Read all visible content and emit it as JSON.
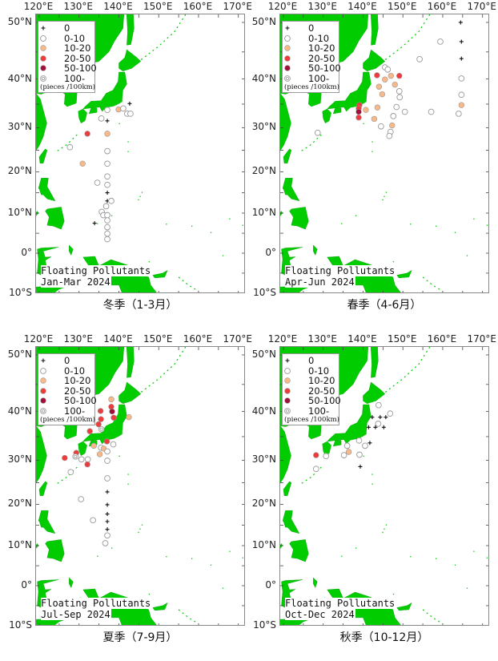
{
  "lon_ticks": [
    "120°E",
    "130°E",
    "140°E",
    "150°E",
    "160°E",
    "170°E"
  ],
  "lat_ticks": [
    "50°N",
    "40°N",
    "30°N",
    "20°N",
    "10°N",
    "0°",
    "10°S"
  ],
  "axis_ranges": {
    "lon": [
      119.2,
      171.8
    ],
    "lat": [
      -10.2,
      51.2
    ],
    "projection": "mercator"
  },
  "colors": {
    "land": "#00cc00",
    "open_stroke": "#999999",
    "10-20": "#f8b888",
    "20-50": "#ee3b3b",
    "50-100": "#a0103a"
  },
  "legend": {
    "items": [
      {
        "symbol": "plus",
        "label": "0"
      },
      {
        "symbol": "open-circle",
        "label": "0-10"
      },
      {
        "symbol": "circle-10-20",
        "label": "10-20"
      },
      {
        "symbol": "circle-20-50",
        "label": "20-50"
      },
      {
        "symbol": "circle-50-100",
        "label": "50-100"
      },
      {
        "symbol": "double-ring",
        "label": "100-"
      }
    ],
    "unit": "(pieces /100km)"
  },
  "panels": [
    {
      "title1": "Floating Pollutants",
      "title2": "Jan-Mar 2024",
      "caption": "冬季（1-3月）",
      "points": [
        [
          142.7,
          35.1,
          "0"
        ],
        [
          137.1,
          33.8,
          "0-10"
        ],
        [
          139.9,
          33.9,
          "10-20"
        ],
        [
          141.1,
          34.1,
          "0-10"
        ],
        [
          142.1,
          33.0,
          "0-10"
        ],
        [
          142.9,
          33.0,
          "0-10"
        ],
        [
          135.6,
          32.0,
          "0-10"
        ],
        [
          137.1,
          31.5,
          "0"
        ],
        [
          132.1,
          28.7,
          "20-50"
        ],
        [
          137.1,
          28.7,
          "10-20"
        ],
        [
          127.7,
          25.7,
          "0-10"
        ],
        [
          137.1,
          24.8,
          "0-10"
        ],
        [
          130.9,
          21.9,
          "10-20"
        ],
        [
          137.1,
          21.9,
          "0-10"
        ],
        [
          137.1,
          18.9,
          "0-10"
        ],
        [
          134.6,
          17.4,
          "0-10"
        ],
        [
          137.1,
          16.9,
          "0-10"
        ],
        [
          137.1,
          15.0,
          "0"
        ],
        [
          137.1,
          13.0,
          "0"
        ],
        [
          138.1,
          13.0,
          "0-10"
        ],
        [
          136.8,
          11.7,
          "0-10"
        ],
        [
          135.7,
          10.3,
          "0-10"
        ],
        [
          136.1,
          9.5,
          "0-10"
        ],
        [
          137.1,
          9.5,
          "0-10"
        ],
        [
          137.1,
          8.2,
          "0-10"
        ],
        [
          133.9,
          7.5,
          "0"
        ],
        [
          137.1,
          6.5,
          "0-10"
        ],
        [
          137.1,
          4.9,
          "0-10"
        ],
        [
          137.1,
          3.5,
          "0-10"
        ]
      ]
    },
    {
      "title1": "Floating Pollutants",
      "title2": "Apr-Jun 2024",
      "caption": "春季（4-6月）",
      "points": [
        [
          164.5,
          50.0,
          "0"
        ],
        [
          159.4,
          46.8,
          "0-10"
        ],
        [
          164.7,
          46.8,
          "0"
        ],
        [
          154.2,
          43.7,
          "0-10"
        ],
        [
          164.7,
          43.8,
          "0"
        ],
        [
          145.5,
          42.2,
          "0-10"
        ],
        [
          146.2,
          41.8,
          "0-10"
        ],
        [
          143.5,
          40.7,
          "20-50"
        ],
        [
          147.0,
          40.6,
          "10-20"
        ],
        [
          149.1,
          40.6,
          "20-50"
        ],
        [
          145.5,
          39.9,
          "10-20"
        ],
        [
          164.7,
          40.1,
          "0-10"
        ],
        [
          144.0,
          38.5,
          "10-20"
        ],
        [
          148.0,
          38.9,
          "10-20"
        ],
        [
          144.8,
          37.0,
          "10-20"
        ],
        [
          149.1,
          37.6,
          "0-10"
        ],
        [
          149.2,
          36.4,
          "0-10"
        ],
        [
          164.7,
          36.9,
          "0-10"
        ],
        [
          139.1,
          34.8,
          "20-50"
        ],
        [
          164.7,
          34.8,
          "10-20"
        ],
        [
          148.4,
          34.4,
          "0-10"
        ],
        [
          143.6,
          34.3,
          "10-20"
        ],
        [
          140.7,
          33.8,
          "10-20"
        ],
        [
          138.9,
          34.1,
          "20-50"
        ],
        [
          138.9,
          33.4,
          "50-100"
        ],
        [
          138.9,
          32.2,
          "20-50"
        ],
        [
          150.5,
          33.4,
          "0-10"
        ],
        [
          157.1,
          33.4,
          "0-10"
        ],
        [
          164.0,
          33.0,
          "0-10"
        ],
        [
          147.6,
          32.5,
          "0-10"
        ],
        [
          142.8,
          31.9,
          "10-20"
        ],
        [
          144.5,
          30.3,
          "0-10"
        ],
        [
          147.3,
          30.5,
          "10-20"
        ],
        [
          146.9,
          29.1,
          "0-10"
        ],
        [
          146.6,
          28.2,
          "0-10"
        ],
        [
          128.6,
          28.9,
          "0-10"
        ]
      ]
    },
    {
      "title1": "Floating Pollutants",
      "title2": "Jul-Sep 2024",
      "caption": "夏季（7-9月）",
      "points": [
        [
          138.1,
          42.3,
          "10-20"
        ],
        [
          138.1,
          40.9,
          "20-50"
        ],
        [
          138.3,
          40.0,
          "50-100"
        ],
        [
          135.4,
          40.1,
          "20-50"
        ],
        [
          135.5,
          38.5,
          "20-50"
        ],
        [
          138.7,
          38.8,
          "20-50"
        ],
        [
          142.5,
          38.9,
          "10-20"
        ],
        [
          134.9,
          37.5,
          "20-50"
        ],
        [
          135.6,
          36.5,
          "100-"
        ],
        [
          132.7,
          36.1,
          "20-50"
        ],
        [
          137.0,
          34.0,
          "20-50"
        ],
        [
          138.6,
          33.4,
          "0-10"
        ],
        [
          133.7,
          33.1,
          "10-20"
        ],
        [
          135.5,
          32.7,
          "0-10"
        ],
        [
          136.2,
          32.5,
          "10-20"
        ],
        [
          137.1,
          31.9,
          "0-10"
        ],
        [
          135.2,
          31.3,
          "10-20"
        ],
        [
          129.3,
          31.6,
          "20-50"
        ],
        [
          129.1,
          30.8,
          "100-"
        ],
        [
          130.6,
          30.2,
          "0-10"
        ],
        [
          132.2,
          30.2,
          "0-10"
        ],
        [
          126.4,
          30.5,
          "20-50"
        ],
        [
          137.1,
          29.9,
          "0-10"
        ],
        [
          132.1,
          29.1,
          "20-50"
        ],
        [
          127.9,
          27.4,
          "0-10"
        ],
        [
          137.1,
          26.0,
          "0-10"
        ],
        [
          137.1,
          22.9,
          "0"
        ],
        [
          130.5,
          21.2,
          "0-10"
        ],
        [
          137.1,
          19.9,
          "0"
        ],
        [
          137.1,
          17.7,
          "0"
        ],
        [
          137.1,
          15.9,
          "0"
        ],
        [
          133.5,
          16.2,
          "0-10"
        ],
        [
          137.1,
          14.0,
          "0"
        ],
        [
          137.1,
          12.5,
          "0-10"
        ],
        [
          136.6,
          10.6,
          "0-10"
        ]
      ]
    },
    {
      "title1": "Floating Pollutants",
      "title2": "Oct-Dec 2024",
      "caption": "秋季（10-12月）",
      "points": [
        [
          143.9,
          41.2,
          "0-10"
        ],
        [
          146.8,
          39.6,
          "0-10"
        ],
        [
          142.3,
          38.9,
          "0"
        ],
        [
          144.3,
          38.9,
          "0"
        ],
        [
          145.7,
          38.9,
          "0"
        ],
        [
          143.8,
          37.6,
          "0-10"
        ],
        [
          141.4,
          36.9,
          "0"
        ],
        [
          143.1,
          36.9,
          "0"
        ],
        [
          145.2,
          36.9,
          "0"
        ],
        [
          139.0,
          34.2,
          "0-10"
        ],
        [
          141.7,
          33.7,
          "0"
        ],
        [
          136.0,
          33.1,
          "0-10"
        ],
        [
          140.5,
          33.1,
          "0-10"
        ],
        [
          136.4,
          31.8,
          "10-20"
        ],
        [
          135.2,
          31.1,
          "0-10"
        ],
        [
          139.1,
          31.2,
          "0-10"
        ],
        [
          128.2,
          31.1,
          "20-50"
        ],
        [
          130.7,
          30.9,
          "0-10"
        ],
        [
          128.2,
          28.1,
          "0-10"
        ],
        [
          139.3,
          28.6,
          "0"
        ]
      ]
    }
  ]
}
